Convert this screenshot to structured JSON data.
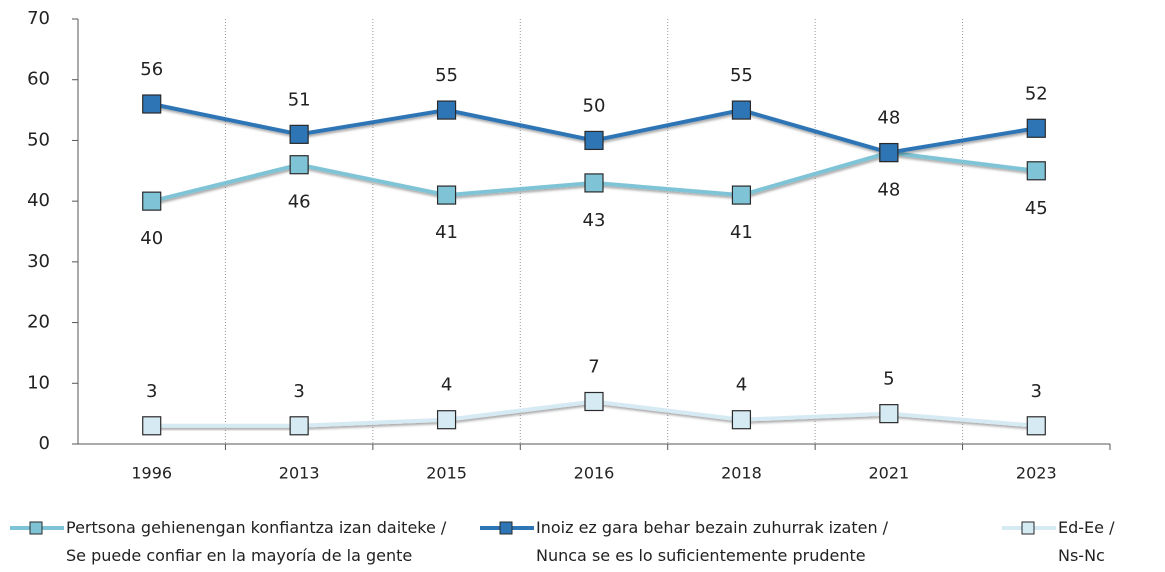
{
  "chart_data": {
    "type": "line",
    "categories": [
      "1996",
      "2013",
      "2015",
      "2016",
      "2018",
      "2021",
      "2023"
    ],
    "series": [
      {
        "name": "Pertsona gehienengan konfiantza izan daiteke /\nSe puede confiar en la mayoría de la gente",
        "color": "#7fc4d6",
        "values": [
          40,
          46,
          41,
          43,
          41,
          48,
          45
        ]
      },
      {
        "name": "Inoiz ez gara behar bezain zuhurrak izaten /\nNunca se es lo suficientemente prudente",
        "color": "#2e75b6",
        "values": [
          56,
          51,
          55,
          50,
          55,
          48,
          52
        ]
      },
      {
        "name": "Ed-Ee /\nNs-Nc",
        "color": "#d6eaf4",
        "values": [
          3,
          3,
          4,
          7,
          4,
          5,
          3
        ]
      }
    ],
    "ylim": [
      0,
      70
    ],
    "yticks": [
      0,
      10,
      20,
      30,
      40,
      50,
      60,
      70
    ]
  }
}
